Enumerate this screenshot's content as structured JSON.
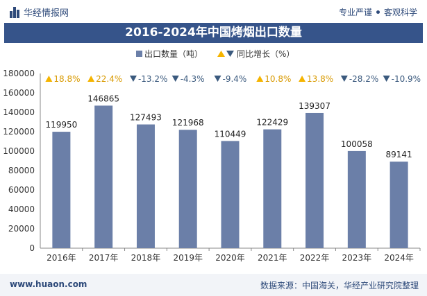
{
  "header": {
    "brand": "华经情报网",
    "tag1": "专业严谨",
    "tag2": "客观科学",
    "brand_color": "#2e4a7a"
  },
  "footer": {
    "website": "www.huaon.com",
    "source": "数据来源：中国海关，华经产业研究院整理"
  },
  "chart_data": {
    "type": "bar",
    "title": "2016-2024年中国烤烟出口数量",
    "categories": [
      "2016年",
      "2017年",
      "2018年",
      "2019年",
      "2020年",
      "2021年",
      "2022年",
      "2023年",
      "2024年"
    ],
    "series": [
      {
        "name": "出口数量（吨）",
        "values": [
          119950,
          146865,
          127493,
          121968,
          110449,
          122429,
          139307,
          100058,
          89141
        ],
        "color": "#6b7fa8"
      }
    ],
    "growth": {
      "name": "同比增长（%）",
      "values": [
        18.8,
        22.4,
        -13.2,
        -4.3,
        -9.4,
        10.8,
        13.8,
        -28.2,
        -10.9
      ],
      "labels": [
        "18.8%",
        "22.4%",
        "-13.2%",
        "-4.3%",
        "-9.4%",
        "10.8%",
        "13.8%",
        "-28.2%",
        "-10.9%"
      ],
      "up_color": "#f5b400",
      "down_color": "#3b5a7e"
    },
    "ylim": [
      0,
      180000
    ],
    "yticks": [
      0,
      20000,
      40000,
      60000,
      80000,
      100000,
      120000,
      140000,
      160000,
      180000
    ],
    "legend_position": "top"
  }
}
